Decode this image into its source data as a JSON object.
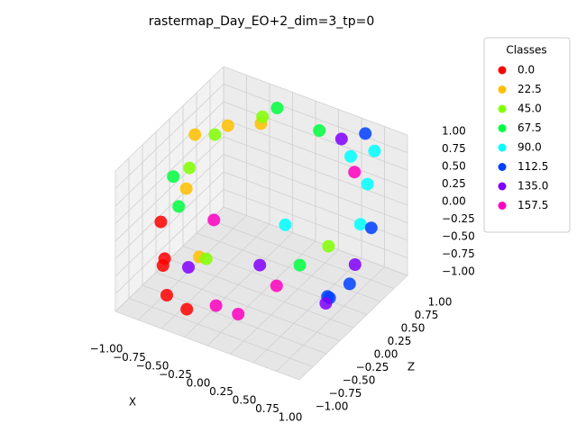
{
  "chart_data": {
    "type": "scatter3d",
    "title": "rastermap_Day_EO+2_dim=3_tp=0",
    "xlabel": "X",
    "ylabel": "Z",
    "xlim": [
      -1,
      1
    ],
    "ylim": [
      -1,
      1
    ],
    "zlim": [
      -1,
      1
    ],
    "xticks": [
      {
        "value": -1,
        "label": "−1.00"
      },
      {
        "value": -0.75,
        "label": "−0.75"
      },
      {
        "value": -0.5,
        "label": "−0.50"
      },
      {
        "value": -0.25,
        "label": "−0.25"
      },
      {
        "value": 0,
        "label": "0.00"
      },
      {
        "value": 0.25,
        "label": "0.25"
      },
      {
        "value": 0.5,
        "label": "0.50"
      },
      {
        "value": 0.75,
        "label": "0.75"
      },
      {
        "value": 1,
        "label": "1.00"
      }
    ],
    "yticks": [
      {
        "value": -1,
        "label": "−1.00"
      },
      {
        "value": -0.75,
        "label": "−0.75"
      },
      {
        "value": -0.5,
        "label": "−0.50"
      },
      {
        "value": -0.25,
        "label": "−0.25"
      },
      {
        "value": 0,
        "label": "0.00"
      },
      {
        "value": 0.25,
        "label": "0.25"
      },
      {
        "value": 0.5,
        "label": "0.50"
      },
      {
        "value": 0.75,
        "label": "0.75"
      },
      {
        "value": 1,
        "label": "1.00"
      }
    ],
    "zticks": [
      {
        "value": -1,
        "label": "−1.00"
      },
      {
        "value": -0.75,
        "label": "−0.75"
      },
      {
        "value": -0.5,
        "label": "−0.50"
      },
      {
        "value": -0.25,
        "label": "−0.25"
      },
      {
        "value": 0,
        "label": "0.00"
      },
      {
        "value": 0.25,
        "label": "0.25"
      },
      {
        "value": 0.5,
        "label": "0.50"
      },
      {
        "value": 0.75,
        "label": "0.75"
      },
      {
        "value": 1,
        "label": "1.00"
      }
    ],
    "grid": true,
    "legend": {
      "title": "Classes",
      "loc": "upper right"
    },
    "series": [
      {
        "name": "0.0",
        "color": "#ff0000",
        "x": [
          -0.6,
          -0.5,
          -0.8,
          -0.4,
          -0.7
        ],
        "y": [
          -0.8,
          -0.9,
          -0.5,
          -0.7,
          -0.6
        ],
        "z": [
          -0.3,
          -0.6,
          0.0,
          -0.9,
          -0.4
        ]
      },
      {
        "name": "22.5",
        "color": "#ffbf00",
        "x": [
          -0.9,
          -0.6,
          -0.7,
          -0.3,
          -0.5
        ],
        "y": [
          0.3,
          0.4,
          -0.2,
          0.5,
          -0.3
        ],
        "z": [
          0.6,
          0.8,
          0.3,
          0.9,
          -0.5
        ]
      },
      {
        "name": "45.0",
        "color": "#80ff00",
        "x": [
          -0.9,
          -0.4,
          -0.6,
          0.2,
          -0.8
        ],
        "y": [
          0.2,
          0.7,
          0.0,
          0.9,
          0.5
        ],
        "z": [
          0.2,
          0.8,
          -0.8,
          -0.9,
          0.5
        ]
      },
      {
        "name": "67.5",
        "color": "#00ff40",
        "x": [
          -0.9,
          -0.3,
          0.3,
          -0.9,
          0.1
        ],
        "y": [
          -0.1,
          0.8,
          0.2,
          0.0,
          0.9
        ],
        "z": [
          0.3,
          0.9,
          -0.6,
          -0.2,
          0.7
        ]
      },
      {
        "name": "90.0",
        "color": "#00ffff",
        "x": [
          0.5,
          0.8,
          0.2,
          0.9,
          0.7
        ],
        "y": [
          0.8,
          0.6,
          0.1,
          0.3,
          0.9
        ],
        "z": [
          0.6,
          0.5,
          0.0,
          0.2,
          0.7
        ]
      },
      {
        "name": "112.5",
        "color": "#0040ff",
        "x": [
          0.9,
          0.6,
          0.9,
          0.6,
          0.8
        ],
        "y": [
          0.5,
          0.2,
          0.1,
          0.9,
          -0.1
        ],
        "z": [
          0.0,
          -0.9,
          -0.5,
          0.9,
          -0.6
        ]
      },
      {
        "name": "135.0",
        "color": "#8000ff",
        "x": [
          0.9,
          0.1,
          0.7,
          0.4,
          -0.5
        ],
        "y": [
          0.2,
          -0.2,
          0.0,
          0.8,
          -0.5
        ],
        "z": [
          -0.3,
          -0.4,
          -0.8,
          0.8,
          -0.5
        ]
      },
      {
        "name": "157.5",
        "color": "#ff00bf",
        "x": [
          -0.2,
          0.4,
          -0.4,
          0.6,
          0.1
        ],
        "y": [
          -0.5,
          -0.4,
          -0.2,
          0.7,
          -0.6
        ],
        "z": [
          -0.9,
          -0.4,
          0.0,
          0.5,
          -0.8
        ]
      }
    ]
  }
}
